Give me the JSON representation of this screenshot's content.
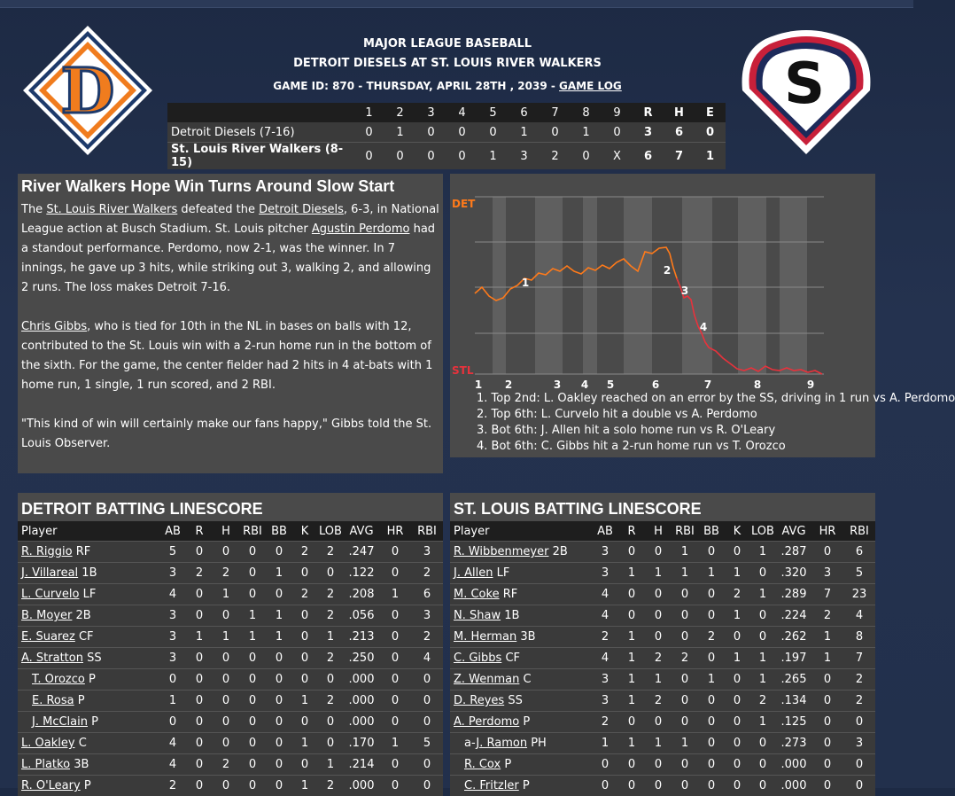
{
  "header": {
    "league": "MAJOR LEAGUE BASEBALL",
    "matchup": "DETROIT DIESELS AT ST. LOUIS RIVER WALKERS",
    "game_info": "GAME ID: 870 - THURSDAY, APRIL 28TH , 2039 - ",
    "game_log_link": "GAME LOG"
  },
  "logos": {
    "away_letter": "D",
    "home_letter": "S"
  },
  "linescore": {
    "headers": [
      "",
      "1",
      "2",
      "3",
      "4",
      "5",
      "6",
      "7",
      "8",
      "9",
      "R",
      "H",
      "E"
    ],
    "rows": [
      {
        "team": "Detroit Diesels (7-16)",
        "innings": [
          "0",
          "1",
          "0",
          "0",
          "0",
          "1",
          "0",
          "1",
          "0"
        ],
        "r": "3",
        "h": "6",
        "e": "0"
      },
      {
        "team": "St. Louis River Walkers (8-15)",
        "innings": [
          "0",
          "0",
          "0",
          "0",
          "1",
          "3",
          "2",
          "0",
          "X"
        ],
        "r": "6",
        "h": "7",
        "e": "1"
      }
    ]
  },
  "story": {
    "headline": "River Walkers Hope Win Turns Around Slow Start",
    "p1_a": "The ",
    "p1_link1": "St. Louis River Walkers",
    "p1_b": " defeated the ",
    "p1_link2": "Detroit Diesels",
    "p1_c": ", 6-3, in National League action at Busch Stadium. St. Louis pitcher ",
    "p1_link3": "Agustin Perdomo",
    "p1_d": " had a standout performance. Perdomo, now 2-1, was the winner. In 7 innings, he gave up 3 hits, while striking out 3, walking 2, and allowing 2 runs. The loss makes Detroit 7-16.",
    "p2_link": "Chris Gibbs",
    "p2_text": ", who is tied for 10th in the NL in bases on balls with 12, contributed to the St. Louis win with a 2-run home run in the bottom of the sixth. For the game, the center fielder had 2 hits in 4 at-bats with 1 home run, 1 single, 1 run scored, and 2 RBI.",
    "p3": "\"This kind of win will certainly make our fans happy,\" Gibbs told the St. Louis Observer."
  },
  "win_prob": {
    "top_label": "DET",
    "bottom_label": "STL",
    "colors": {
      "line": "#ff7a1a",
      "line_late": "#e8323c",
      "shade": "#5f5f5f",
      "grid": "#8a8a8a"
    },
    "innings": [
      "1",
      "2",
      "3",
      "4",
      "5",
      "6",
      "7",
      "8",
      "9"
    ],
    "markers": [
      "1",
      "2",
      "3",
      "4"
    ],
    "plays": [
      "1. Top 2nd: L. Oakley reached on an error by the SS, driving in 1 run vs A. Perdomo",
      "2. Top 6th: L. Curvelo hit a double vs A. Perdomo",
      "3. Bot 6th: J. Allen hit a solo home run vs R. O'Leary",
      "4. Bot 6th: C. Gibbs hit a 2-run home run vs T. Orozco"
    ]
  },
  "det_batting": {
    "title": "DETROIT BATTING LINESCORE",
    "headers": [
      "Player",
      "AB",
      "R",
      "H",
      "RBI",
      "BB",
      "K",
      "LOB",
      "AVG",
      "HR",
      "RBI"
    ],
    "rows": [
      {
        "name": "R. Riggio",
        "pos": "RF",
        "sub": false,
        "stats": [
          "5",
          "0",
          "0",
          "0",
          "0",
          "2",
          "2",
          ".247",
          "0",
          "3"
        ]
      },
      {
        "name": "J. Villareal",
        "pos": "1B",
        "sub": false,
        "stats": [
          "3",
          "2",
          "2",
          "0",
          "1",
          "0",
          "0",
          ".122",
          "0",
          "2"
        ]
      },
      {
        "name": "L. Curvelo",
        "pos": "LF",
        "sub": false,
        "stats": [
          "4",
          "0",
          "1",
          "0",
          "0",
          "2",
          "2",
          ".208",
          "1",
          "6"
        ]
      },
      {
        "name": "B. Moyer",
        "pos": "2B",
        "sub": false,
        "stats": [
          "3",
          "0",
          "0",
          "1",
          "1",
          "0",
          "2",
          ".056",
          "0",
          "3"
        ]
      },
      {
        "name": "E. Suarez",
        "pos": "CF",
        "sub": false,
        "stats": [
          "3",
          "1",
          "1",
          "1",
          "1",
          "0",
          "1",
          ".213",
          "0",
          "2"
        ]
      },
      {
        "name": "A. Stratton",
        "pos": "SS",
        "sub": false,
        "stats": [
          "3",
          "0",
          "0",
          "0",
          "0",
          "0",
          "2",
          ".250",
          "0",
          "4"
        ]
      },
      {
        "name": "T. Orozco",
        "pos": "P",
        "sub": true,
        "stats": [
          "0",
          "0",
          "0",
          "0",
          "0",
          "0",
          "0",
          ".000",
          "0",
          "0"
        ]
      },
      {
        "name": "E. Rosa",
        "pos": "P",
        "sub": true,
        "stats": [
          "1",
          "0",
          "0",
          "0",
          "0",
          "1",
          "2",
          ".000",
          "0",
          "0"
        ]
      },
      {
        "name": "J. McClain",
        "pos": "P",
        "sub": true,
        "stats": [
          "0",
          "0",
          "0",
          "0",
          "0",
          "0",
          "0",
          ".000",
          "0",
          "0"
        ]
      },
      {
        "name": "L. Oakley",
        "pos": "C",
        "sub": false,
        "stats": [
          "4",
          "0",
          "0",
          "0",
          "0",
          "1",
          "0",
          ".170",
          "1",
          "5"
        ]
      },
      {
        "name": "L. Platko",
        "pos": "3B",
        "sub": false,
        "stats": [
          "4",
          "0",
          "2",
          "0",
          "0",
          "0",
          "1",
          ".214",
          "0",
          "0"
        ]
      },
      {
        "name": "R. O'Leary",
        "pos": "P",
        "sub": false,
        "stats": [
          "2",
          "0",
          "0",
          "0",
          "0",
          "1",
          "2",
          ".000",
          "0",
          "0"
        ]
      }
    ]
  },
  "stl_batting": {
    "title": "ST. LOUIS BATTING LINESCORE",
    "headers": [
      "Player",
      "AB",
      "R",
      "H",
      "RBI",
      "BB",
      "K",
      "LOB",
      "AVG",
      "HR",
      "RBI"
    ],
    "rows": [
      {
        "name": "R. Wibbenmeyer",
        "pos": "2B",
        "sub": false,
        "prefix": "",
        "stats": [
          "3",
          "0",
          "0",
          "1",
          "0",
          "0",
          "1",
          ".287",
          "0",
          "6"
        ]
      },
      {
        "name": "J. Allen",
        "pos": "LF",
        "sub": false,
        "prefix": "",
        "stats": [
          "3",
          "1",
          "1",
          "1",
          "1",
          "1",
          "0",
          ".320",
          "3",
          "5"
        ]
      },
      {
        "name": "M. Coke",
        "pos": "RF",
        "sub": false,
        "prefix": "",
        "stats": [
          "4",
          "0",
          "0",
          "0",
          "0",
          "2",
          "1",
          ".289",
          "7",
          "23"
        ]
      },
      {
        "name": "N. Shaw",
        "pos": "1B",
        "sub": false,
        "prefix": "",
        "stats": [
          "4",
          "0",
          "0",
          "0",
          "0",
          "1",
          "0",
          ".224",
          "2",
          "4"
        ]
      },
      {
        "name": "M. Herman",
        "pos": "3B",
        "sub": false,
        "prefix": "",
        "stats": [
          "2",
          "1",
          "0",
          "0",
          "2",
          "0",
          "0",
          ".262",
          "1",
          "8"
        ]
      },
      {
        "name": "C. Gibbs",
        "pos": "CF",
        "sub": false,
        "prefix": "",
        "stats": [
          "4",
          "1",
          "2",
          "2",
          "0",
          "1",
          "1",
          ".197",
          "1",
          "7"
        ]
      },
      {
        "name": "Z. Wenman",
        "pos": "C",
        "sub": false,
        "prefix": "",
        "stats": [
          "3",
          "1",
          "1",
          "0",
          "1",
          "0",
          "1",
          ".265",
          "0",
          "2"
        ]
      },
      {
        "name": "D. Reyes",
        "pos": "SS",
        "sub": false,
        "prefix": "",
        "stats": [
          "3",
          "1",
          "2",
          "0",
          "0",
          "0",
          "2",
          ".134",
          "0",
          "2"
        ]
      },
      {
        "name": "A. Perdomo",
        "pos": "P",
        "sub": false,
        "prefix": "",
        "stats": [
          "2",
          "0",
          "0",
          "0",
          "0",
          "0",
          "1",
          ".125",
          "0",
          "0"
        ]
      },
      {
        "name": "J. Ramon",
        "pos": "PH",
        "sub": true,
        "prefix": "a-",
        "stats": [
          "1",
          "1",
          "1",
          "1",
          "0",
          "0",
          "0",
          ".273",
          "0",
          "3"
        ]
      },
      {
        "name": "R. Cox",
        "pos": "P",
        "sub": true,
        "prefix": "",
        "stats": [
          "0",
          "0",
          "0",
          "0",
          "0",
          "0",
          "0",
          ".000",
          "0",
          "0"
        ]
      },
      {
        "name": "C. Fritzler",
        "pos": "P",
        "sub": true,
        "prefix": "",
        "stats": [
          "0",
          "0",
          "0",
          "0",
          "0",
          "0",
          "0",
          ".000",
          "0",
          "0"
        ]
      }
    ]
  }
}
